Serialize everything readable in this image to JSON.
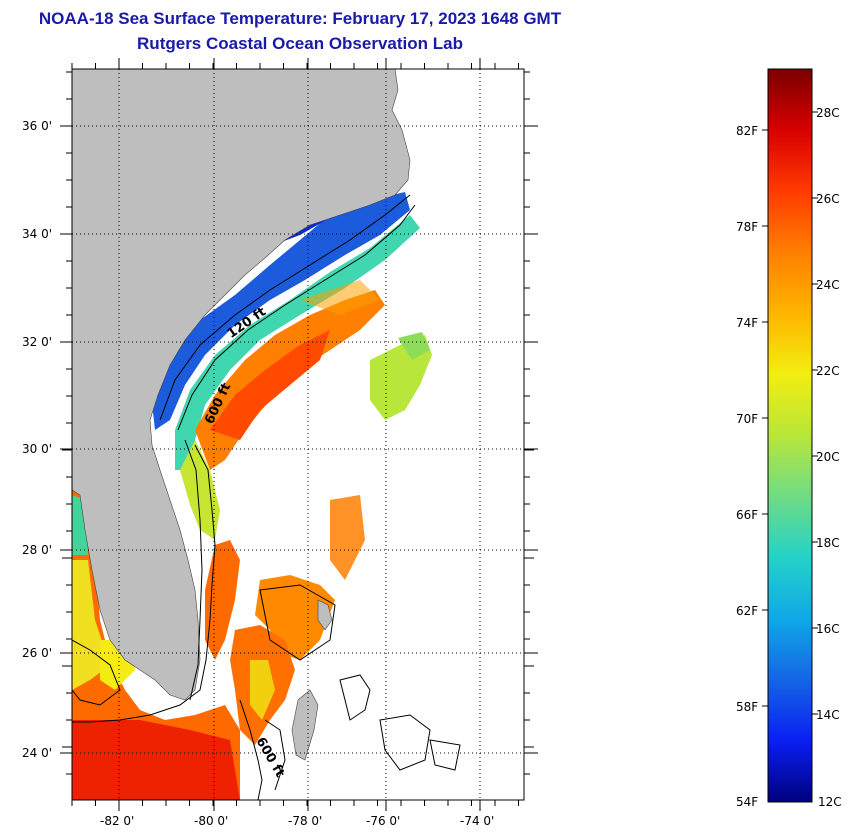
{
  "header": {
    "title": "NOAA-18 Sea Surface Temperature:  February 17, 2023 1648 GMT",
    "subtitle": "Rutgers Coastal Ocean Observation Lab"
  },
  "map": {
    "lat_labels": [
      "36 0'",
      "34 0'",
      "32 0'",
      "30 0'",
      "28 0'",
      "26 0'",
      "24 0'"
    ],
    "lon_labels": [
      "-82 0'",
      "-80 0'",
      "-78 0'",
      "-76 0'",
      "-74 0'"
    ],
    "contour_labels": [
      "120 ft",
      "600 ft",
      "600 ft"
    ],
    "land_color": "#bebebe"
  },
  "colorbar": {
    "fahrenheit_labels": [
      "82F",
      "78F",
      "74F",
      "70F",
      "66F",
      "62F",
      "58F",
      "54F"
    ],
    "celsius_labels": [
      "28C",
      "26C",
      "24C",
      "22C",
      "20C",
      "18C",
      "16C",
      "14C",
      "12C"
    ],
    "gradient": [
      "#7a0000",
      "#d70000",
      "#ff3a00",
      "#ff7f00",
      "#ffb400",
      "#f2ee10",
      "#b8e63a",
      "#6fdc84",
      "#25d2c8",
      "#0fa8e8",
      "#1466e4",
      "#0a1ff2",
      "#00007e"
    ]
  }
}
